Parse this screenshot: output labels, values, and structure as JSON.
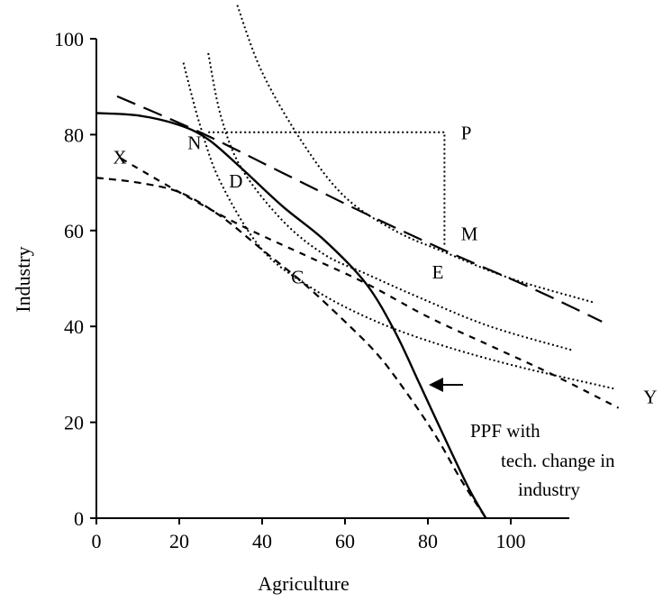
{
  "chart_data": {
    "type": "line",
    "title": "",
    "xlabel": "Agriculture",
    "ylabel": "Industry",
    "xlim": [
      0,
      115
    ],
    "ylim": [
      0,
      100
    ],
    "grid": false,
    "x_ticks": [
      "0",
      "20",
      "40",
      "60",
      "80",
      "100"
    ],
    "y_ticks": [
      "0",
      "20",
      "40",
      "60",
      "80",
      "100"
    ],
    "x_tick_values": [
      0,
      20,
      40,
      60,
      80,
      100
    ],
    "y_tick_values": [
      0,
      20,
      40,
      60,
      80,
      100
    ],
    "colors": {
      "ink": "#000000",
      "background": "#ffffff"
    },
    "series": [
      {
        "style": "solid",
        "points": [
          [
            0,
            84.5
          ],
          [
            10,
            84
          ],
          [
            20,
            82
          ],
          [
            27,
            79
          ],
          [
            35,
            73
          ],
          [
            45,
            65
          ],
          [
            55,
            58
          ],
          [
            65,
            49
          ],
          [
            72,
            39
          ],
          [
            78,
            28
          ],
          [
            85,
            15
          ],
          [
            90,
            6
          ],
          [
            94,
            0
          ]
        ]
      },
      {
        "style": "dashed",
        "points": [
          [
            0,
            71
          ],
          [
            10,
            70
          ],
          [
            20,
            68
          ],
          [
            30,
            63
          ],
          [
            40,
            56
          ],
          [
            50,
            49
          ],
          [
            60,
            41
          ],
          [
            68,
            34
          ],
          [
            75,
            26
          ],
          [
            82,
            17
          ],
          [
            88,
            8
          ],
          [
            94,
            0
          ]
        ]
      },
      {
        "style": "long-dashed",
        "points": [
          [
            5,
            88
          ],
          [
            25,
            80.5
          ],
          [
            45,
            72
          ],
          [
            65,
            63.5
          ],
          [
            85,
            55.5
          ],
          [
            105,
            48
          ],
          [
            122,
            41
          ]
        ]
      },
      {
        "style": "short-dashed",
        "points": [
          [
            6,
            75
          ],
          [
            20,
            68
          ],
          [
            35,
            61
          ],
          [
            50,
            55
          ],
          [
            65,
            49
          ],
          [
            80,
            42
          ],
          [
            95,
            36
          ],
          [
            110,
            30
          ],
          [
            126,
            23
          ]
        ]
      },
      {
        "style": "dotted",
        "points": [
          [
            34,
            107
          ],
          [
            40,
            93
          ],
          [
            50,
            78
          ],
          [
            60,
            67
          ],
          [
            72,
            60
          ],
          [
            84,
            55.5
          ],
          [
            100,
            50
          ],
          [
            120,
            45
          ]
        ]
      },
      {
        "style": "dotted",
        "points": [
          [
            27,
            97
          ],
          [
            30,
            84
          ],
          [
            35,
            73
          ],
          [
            45,
            62
          ],
          [
            55,
            55
          ],
          [
            65,
            51
          ],
          [
            78,
            46
          ],
          [
            95,
            40
          ],
          [
            115,
            35
          ]
        ]
      },
      {
        "style": "dotted",
        "points": [
          [
            21,
            95
          ],
          [
            25,
            82
          ],
          [
            30,
            70
          ],
          [
            40,
            56
          ],
          [
            52,
            48
          ],
          [
            65,
            42
          ],
          [
            80,
            37
          ],
          [
            100,
            32
          ],
          [
            125,
            27
          ]
        ]
      },
      {
        "style": "dotted",
        "points": [
          [
            27,
            80.5
          ],
          [
            84,
            80.5
          ],
          [
            84,
            57
          ]
        ]
      }
    ],
    "point_labels": [
      {
        "text": "N",
        "x": 22,
        "y": 77
      },
      {
        "text": "P",
        "x": 88,
        "y": 79
      },
      {
        "text": "X",
        "x": 4,
        "y": 74
      },
      {
        "text": "D",
        "x": 32,
        "y": 69
      },
      {
        "text": "M",
        "x": 88,
        "y": 58
      },
      {
        "text": "C",
        "x": 47,
        "y": 49
      },
      {
        "text": "E",
        "x": 81,
        "y": 50
      },
      {
        "text": "Y",
        "x": 132,
        "y": 24
      }
    ],
    "annotations": [
      {
        "lines": [
          "PPF with",
          "tech. change in",
          "industry"
        ]
      }
    ]
  }
}
